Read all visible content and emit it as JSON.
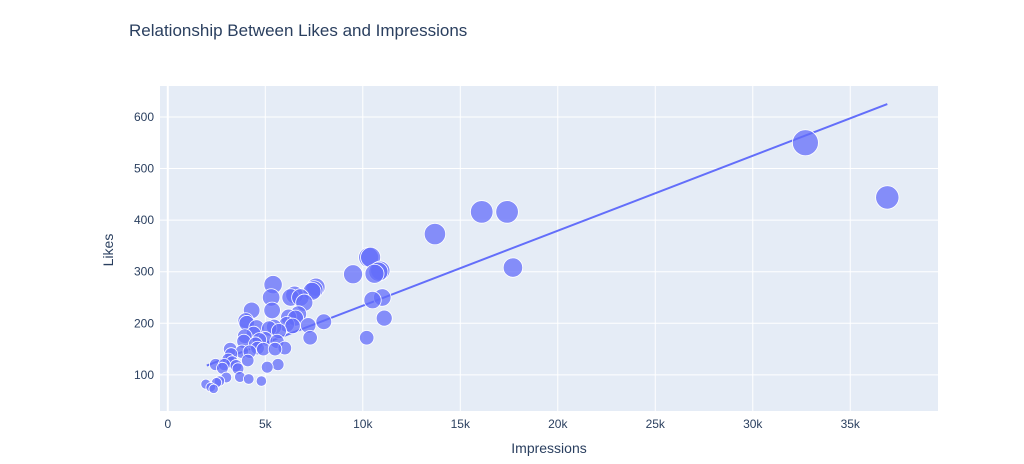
{
  "chart_data": {
    "type": "scatter",
    "title": "Relationship Between Likes and Impressions",
    "xlabel": "Impressions",
    "ylabel": "Likes",
    "xlim": [
      -400,
      39500
    ],
    "ylim": [
      30,
      660
    ],
    "xticks": [
      0,
      5000,
      10000,
      15000,
      20000,
      25000,
      30000,
      35000
    ],
    "xtick_labels": [
      "0",
      "5k",
      "10k",
      "15k",
      "20k",
      "25k",
      "30k",
      "35k"
    ],
    "yticks": [
      100,
      200,
      300,
      400,
      500,
      600
    ],
    "ytick_labels": [
      "100",
      "200",
      "300",
      "400",
      "500",
      "600"
    ],
    "grid": true,
    "marker_color": "#636efa",
    "marker_opacity": 0.75,
    "plot_bg": "#e5ecf6",
    "size_encoding": "likes",
    "trendline": {
      "type": "ols",
      "color": "#636efa",
      "points": [
        [
          2000,
          118
        ],
        [
          36900,
          625
        ]
      ]
    },
    "points": [
      [
        1950,
        82
      ],
      [
        2200,
        76
      ],
      [
        2350,
        73
      ],
      [
        2500,
        85
      ],
      [
        2450,
        120
      ],
      [
        2650,
        88
      ],
      [
        2800,
        113
      ],
      [
        2900,
        120
      ],
      [
        3000,
        95
      ],
      [
        3100,
        130
      ],
      [
        3200,
        150
      ],
      [
        3250,
        140
      ],
      [
        3300,
        125
      ],
      [
        3500,
        118
      ],
      [
        3600,
        112
      ],
      [
        3700,
        96
      ],
      [
        3800,
        145
      ],
      [
        3900,
        165
      ],
      [
        3950,
        175
      ],
      [
        4000,
        205
      ],
      [
        4050,
        200
      ],
      [
        4100,
        128
      ],
      [
        4150,
        92
      ],
      [
        4200,
        145
      ],
      [
        4300,
        225
      ],
      [
        4400,
        180
      ],
      [
        4500,
        160
      ],
      [
        4550,
        192
      ],
      [
        4600,
        152
      ],
      [
        4700,
        168
      ],
      [
        4800,
        88
      ],
      [
        4900,
        150
      ],
      [
        5000,
        170
      ],
      [
        5100,
        115
      ],
      [
        5200,
        190
      ],
      [
        5300,
        250
      ],
      [
        5350,
        225
      ],
      [
        5400,
        275
      ],
      [
        5450,
        193
      ],
      [
        5500,
        150
      ],
      [
        5600,
        165
      ],
      [
        5650,
        120
      ],
      [
        5700,
        185
      ],
      [
        6000,
        152
      ],
      [
        6100,
        198
      ],
      [
        6200,
        212
      ],
      [
        6300,
        250
      ],
      [
        6400,
        195
      ],
      [
        6500,
        255
      ],
      [
        6550,
        210
      ],
      [
        6700,
        218
      ],
      [
        6800,
        250
      ],
      [
        7000,
        240
      ],
      [
        7200,
        196
      ],
      [
        7300,
        172
      ],
      [
        7400,
        262
      ],
      [
        7500,
        265
      ],
      [
        7600,
        270
      ],
      [
        8000,
        203
      ],
      [
        9500,
        295
      ],
      [
        10200,
        172
      ],
      [
        10300,
        328
      ],
      [
        10400,
        328
      ],
      [
        10500,
        245
      ],
      [
        10600,
        296
      ],
      [
        10800,
        300
      ],
      [
        10900,
        302
      ],
      [
        11000,
        250
      ],
      [
        11100,
        210
      ],
      [
        13700,
        373
      ],
      [
        16100,
        416
      ],
      [
        17400,
        416
      ],
      [
        17700,
        308
      ],
      [
        32700,
        550
      ],
      [
        36900,
        444
      ]
    ]
  }
}
